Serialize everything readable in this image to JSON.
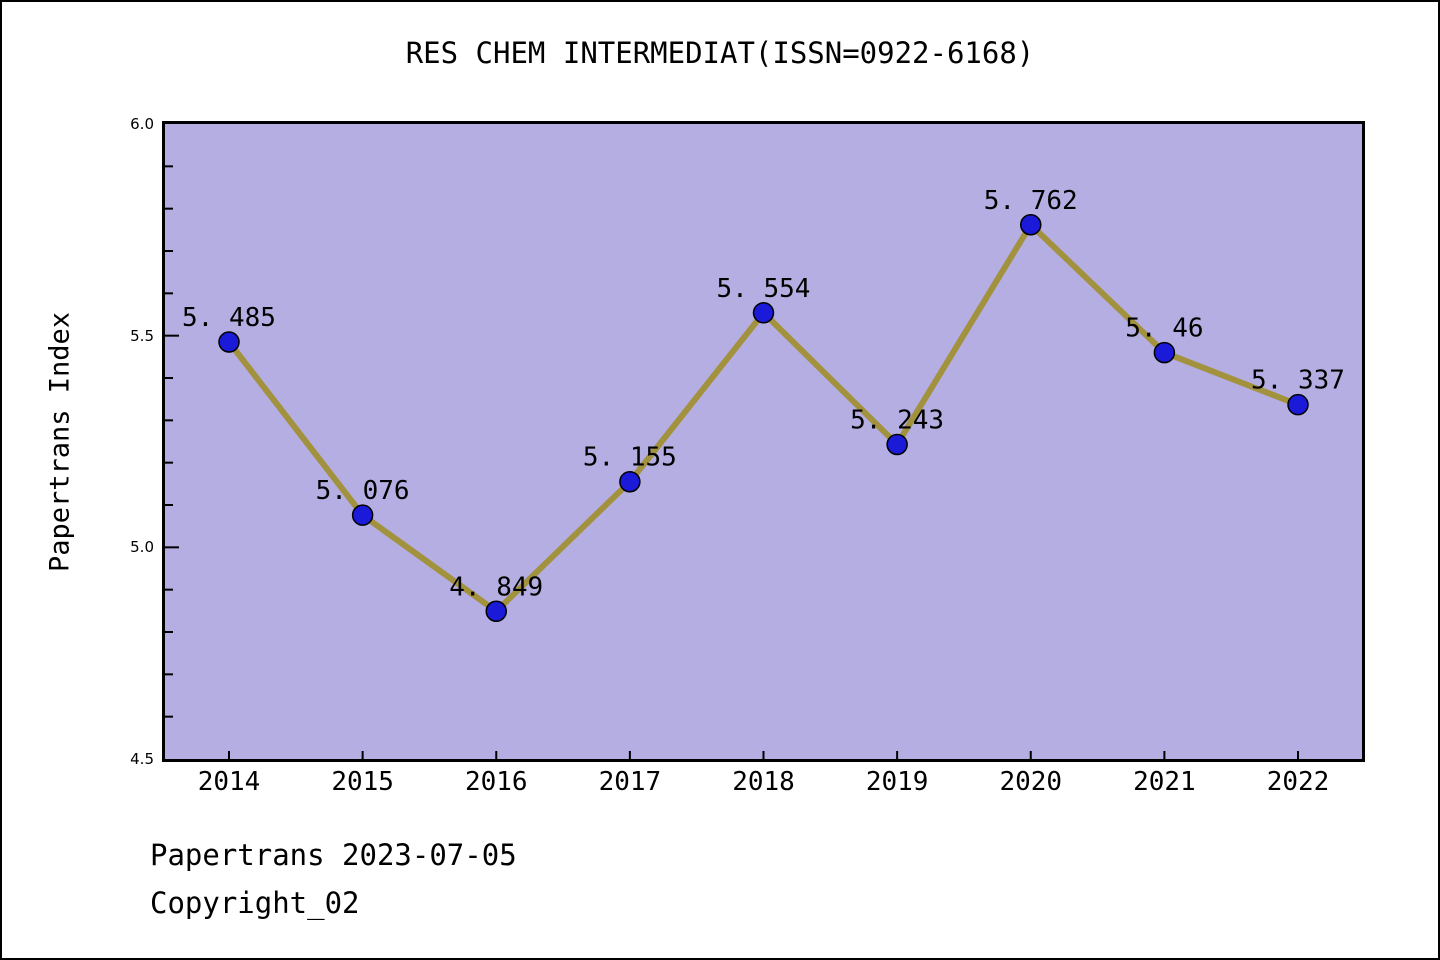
{
  "figure": {
    "background_color": "#ffffff",
    "border_color": "#000000"
  },
  "chart_data": {
    "type": "line",
    "title": "RES CHEM INTERMEDIAT(ISSN=0922-6168)",
    "xlabel": "",
    "ylabel": "Papertrans Index",
    "categories": [
      "2014",
      "2015",
      "2016",
      "2017",
      "2018",
      "2019",
      "2020",
      "2021",
      "2022"
    ],
    "values": [
      5.485,
      5.076,
      4.849,
      5.155,
      5.554,
      5.243,
      5.762,
      5.46,
      5.337
    ],
    "point_labels": [
      "5. 485",
      "5. 076",
      "4. 849",
      "5. 155",
      "5. 554",
      "5. 243",
      "5. 762",
      "5. 46",
      "5. 337"
    ],
    "ylim": [
      4.5,
      6.0
    ],
    "ytick_major": [
      4.5,
      5.0,
      5.5,
      6.0
    ],
    "ytick_labels": [
      "4.5",
      "5.0",
      "5.5",
      "6.0"
    ],
    "ytick_minor_step": 0.1,
    "grid": false,
    "legend_position": "none",
    "plot_bg_color": "#b4aee2",
    "line_color": "#a2923e",
    "marker_color": "#1a1ad8",
    "marker_edge_color": "#000000",
    "text_color": "#000000"
  },
  "footer": {
    "line1": "Papertrans 2023-07-05",
    "line2": "Copyright_02"
  }
}
